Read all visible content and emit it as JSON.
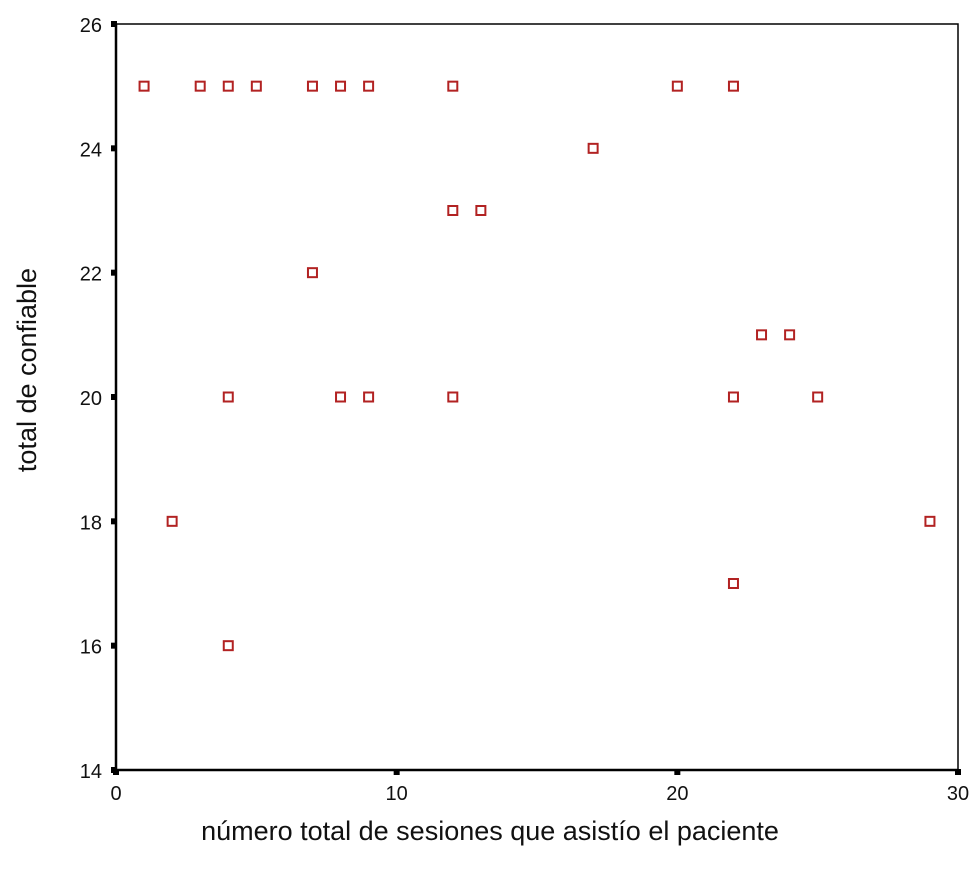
{
  "chart_data": {
    "type": "scatter",
    "xlabel": "número total de sesiones que asistío el paciente",
    "ylabel": "total de confiable",
    "xlim": [
      0,
      30
    ],
    "ylim": [
      14,
      26
    ],
    "xticks": [
      "0",
      "10",
      "20",
      "30"
    ],
    "yticks": [
      "14",
      "16",
      "18",
      "20",
      "22",
      "24",
      "26"
    ],
    "grid": false,
    "marker": "hollow-square",
    "marker_color": "#b22222",
    "series": [
      {
        "points": [
          {
            "x": 1,
            "y": 25
          },
          {
            "x": 3,
            "y": 25
          },
          {
            "x": 4,
            "y": 25
          },
          {
            "x": 5,
            "y": 25
          },
          {
            "x": 7,
            "y": 25
          },
          {
            "x": 8,
            "y": 25
          },
          {
            "x": 9,
            "y": 25
          },
          {
            "x": 12,
            "y": 25
          },
          {
            "x": 20,
            "y": 25
          },
          {
            "x": 22,
            "y": 25
          },
          {
            "x": 17,
            "y": 24
          },
          {
            "x": 12,
            "y": 23
          },
          {
            "x": 13,
            "y": 23
          },
          {
            "x": 7,
            "y": 22
          },
          {
            "x": 23,
            "y": 21
          },
          {
            "x": 24,
            "y": 21
          },
          {
            "x": 4,
            "y": 20
          },
          {
            "x": 8,
            "y": 20
          },
          {
            "x": 9,
            "y": 20
          },
          {
            "x": 12,
            "y": 20
          },
          {
            "x": 22,
            "y": 20
          },
          {
            "x": 25,
            "y": 20
          },
          {
            "x": 2,
            "y": 18
          },
          {
            "x": 29,
            "y": 18
          },
          {
            "x": 22,
            "y": 17
          },
          {
            "x": 4,
            "y": 16
          }
        ]
      }
    ]
  }
}
